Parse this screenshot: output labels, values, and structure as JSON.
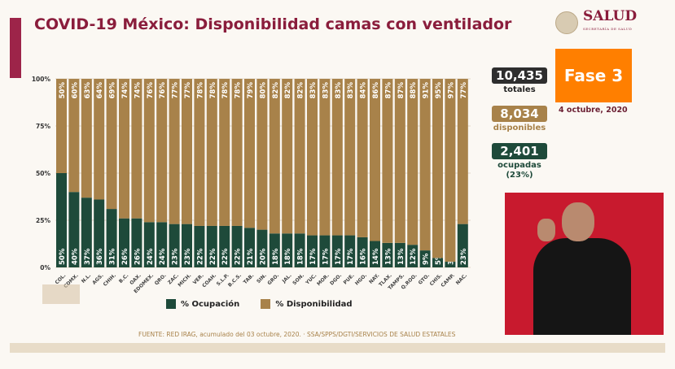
{
  "title": "COVID-19 México: Disponibilidad camas con ventilador",
  "logo": {
    "name": "SALUD",
    "subtitle": "SECRETARÍA DE SALUD"
  },
  "stats": {
    "total": "10,435",
    "total_label": "totales",
    "available": "8,034",
    "available_label": "disponibles",
    "occupied": "2,401",
    "occupied_label": "ocupadas",
    "occupied_pct": "(23%)"
  },
  "phase": "Fase 3",
  "date": "4 octubre, 2020",
  "source": "FUENTE: RED IRAG, acumulado del 03 octubre, 2020.  ·  SSA/SPPS/DGTI/SERVICIOS DE SALUD ESTATALES",
  "colors": {
    "occupied": "#1e4a3a",
    "available": "#a8824a",
    "title": "#8a1d3c",
    "phase": "#ff7f00"
  },
  "chart_data": {
    "type": "bar",
    "stacked": true,
    "title": "COVID-19 México: Disponibilidad camas con ventilador",
    "categories": [
      "COL.",
      "CDMX.",
      "N.L.",
      "AGS.",
      "CHIH.",
      "B.C.",
      "OAX.",
      "EDOMEX.",
      "QRO.",
      "ZAC.",
      "MICH.",
      "VER.",
      "COAH.",
      "S.L.P.",
      "B.C.S.",
      "TAB.",
      "SIN.",
      "GRO.",
      "JAL.",
      "SON.",
      "YUC.",
      "MOR.",
      "DGO.",
      "PUE.",
      "HGO.",
      "NAY.",
      "TLAX.",
      "TAMPS.",
      "Q.ROO.",
      "GTO.",
      "CHIS.",
      "CAMP.",
      "NAC."
    ],
    "series": [
      {
        "name": "% Ocupación",
        "values": [
          50,
          40,
          37,
          36,
          31,
          26,
          26,
          24,
          24,
          23,
          23,
          22,
          22,
          22,
          22,
          21,
          20,
          18,
          18,
          18,
          17,
          17,
          17,
          17,
          16,
          14,
          13,
          13,
          12,
          9,
          5,
          3,
          23
        ]
      },
      {
        "name": "% Disponibilidad",
        "values": [
          50,
          60,
          63,
          64,
          69,
          74,
          74,
          76,
          76,
          77,
          77,
          78,
          78,
          78,
          78,
          79,
          80,
          82,
          82,
          82,
          83,
          83,
          83,
          83,
          84,
          86,
          87,
          87,
          88,
          91,
          95,
          97,
          77
        ]
      }
    ],
    "yticks": [
      "0%",
      "25%",
      "50%",
      "75%",
      "100%"
    ],
    "ylim": [
      0,
      100
    ],
    "legend": "bottom",
    "grid": true
  }
}
